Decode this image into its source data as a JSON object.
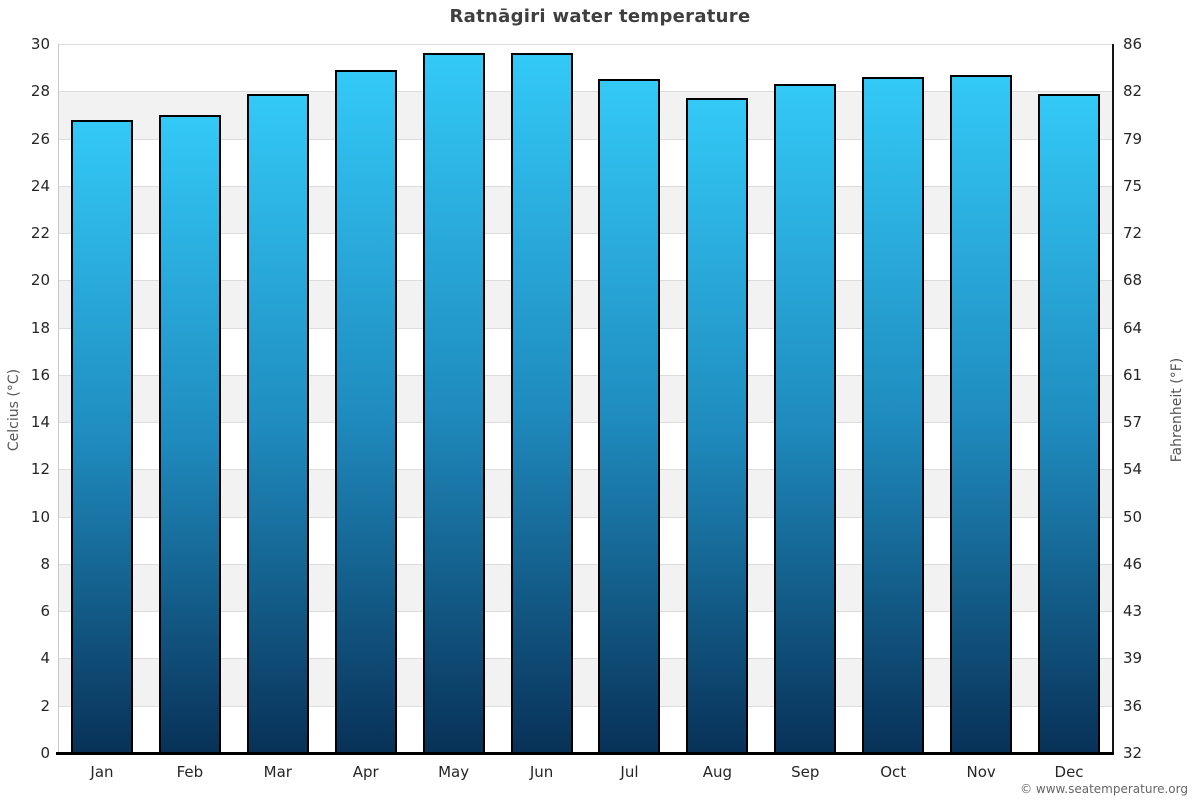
{
  "title": "Ratnāgiri water temperature",
  "footer": {
    "attribution": "© www.seatemperature.org"
  },
  "chart_data": {
    "type": "bar",
    "title": "Ratnāgiri water temperature",
    "categories": [
      "Jan",
      "Feb",
      "Mar",
      "Apr",
      "May",
      "Jun",
      "Jul",
      "Aug",
      "Sep",
      "Oct",
      "Nov",
      "Dec"
    ],
    "values": [
      26.8,
      27.0,
      27.9,
      28.9,
      29.6,
      29.6,
      28.5,
      27.7,
      28.3,
      28.6,
      28.7,
      27.9
    ],
    "ylabel_left": "Celcius (°C)",
    "ylabel_right": "Fahrenheit (°F)",
    "ylim_celsius": [
      0,
      30
    ],
    "yticks_celsius": [
      0,
      2,
      4,
      6,
      8,
      10,
      12,
      14,
      16,
      18,
      20,
      22,
      24,
      26,
      28,
      30
    ],
    "yticks_fahrenheit_labels": [
      "32",
      "36",
      "39",
      "43",
      "46",
      "50",
      "54",
      "57",
      "61",
      "64",
      "68",
      "72",
      "75",
      "79",
      "82",
      "86"
    ],
    "grid": true,
    "legend": "none",
    "colors": {
      "bar_top": "#33c9f7",
      "bar_mid": "#1f8cbf",
      "bar_bottom": "#083157",
      "bar_border": "#000000",
      "band_alt": "#f2f2f2",
      "gridline": "#dcdcdc",
      "title_text": "#3f3f3f",
      "tick_text": "#262626",
      "axis_title_text": "#555555",
      "footer_text": "#666666"
    }
  }
}
